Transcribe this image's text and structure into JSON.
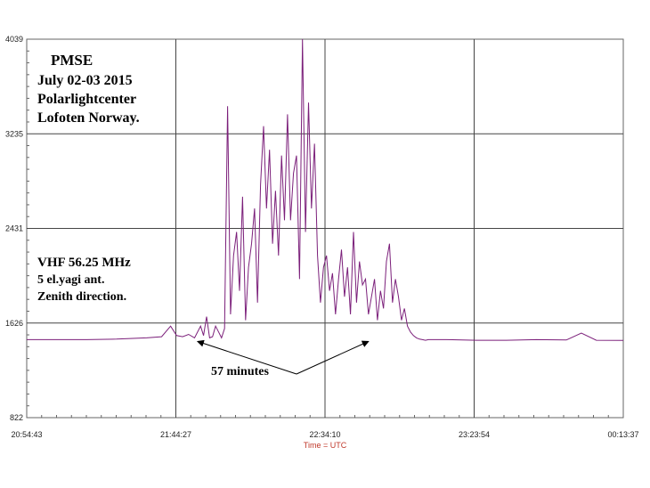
{
  "chart_data": {
    "type": "line",
    "title_lines": [
      "PMSE",
      "July 02-03 2015",
      "Polarlightcenter",
      "Lofoten Norway."
    ],
    "info_lines": [
      "VHF 56.25 MHz",
      "5 el.yagi ant.",
      "Zenith direction."
    ],
    "xlabel": "Time = UTC",
    "ylabel": "",
    "x_tick_labels": [
      "20:54:43",
      "21:44:27",
      "22:34:10",
      "23:23:54",
      "00:13:37"
    ],
    "y_tick_labels": [
      "822",
      "1626",
      "2431",
      "3235",
      "4039"
    ],
    "ylim": [
      822,
      4039
    ],
    "x_minutes_range": [
      0,
      199
    ],
    "grid": true,
    "series": [
      {
        "color": "#7b1f7a",
        "x_minutes": [
          0,
          10,
          20,
          30,
          40,
          45,
          48,
          50,
          52,
          54,
          56,
          58,
          59,
          60,
          61,
          62,
          63,
          64,
          65,
          66,
          67,
          68,
          69,
          70,
          71,
          72,
          73,
          74,
          75,
          76,
          77,
          78,
          79,
          80,
          81,
          82,
          83,
          84,
          85,
          86,
          87,
          88,
          89,
          90,
          91,
          92,
          93,
          94,
          95,
          96,
          97,
          98,
          99,
          100,
          101,
          102,
          103,
          104,
          105,
          106,
          107,
          108,
          109,
          110,
          111,
          112,
          113,
          114,
          115,
          116,
          117,
          118,
          119,
          120,
          121,
          122,
          123,
          124,
          125,
          126,
          127,
          128,
          129,
          130,
          131,
          132,
          133,
          134,
          135,
          136,
          140,
          150,
          160,
          170,
          180,
          185,
          190,
          199
        ],
        "values": [
          1485,
          1485,
          1485,
          1490,
          1500,
          1510,
          1600,
          1520,
          1510,
          1530,
          1500,
          1600,
          1520,
          1680,
          1500,
          1510,
          1600,
          1550,
          1500,
          1580,
          3470,
          1700,
          2200,
          2400,
          1900,
          2700,
          1650,
          2100,
          2300,
          2600,
          1800,
          2800,
          3300,
          2600,
          3100,
          2300,
          2750,
          2200,
          3050,
          2500,
          3400,
          2500,
          2900,
          3050,
          2000,
          4039,
          2400,
          3500,
          2600,
          3150,
          2200,
          1800,
          2100,
          2200,
          1900,
          2050,
          1700,
          2000,
          2250,
          1850,
          2100,
          1700,
          2400,
          1800,
          2150,
          1950,
          2000,
          1700,
          1850,
          2000,
          1650,
          1900,
          1750,
          2150,
          2300,
          1800,
          2000,
          1850,
          1650,
          1750,
          1600,
          1550,
          1520,
          1500,
          1490,
          1485,
          1480,
          1485,
          1485,
          1485,
          1485,
          1480,
          1480,
          1485,
          1482,
          1540,
          1480,
          1478
        ]
      }
    ],
    "annotation": {
      "label": "57 minutes",
      "from_minutes": 57,
      "to_minutes": 114
    }
  }
}
